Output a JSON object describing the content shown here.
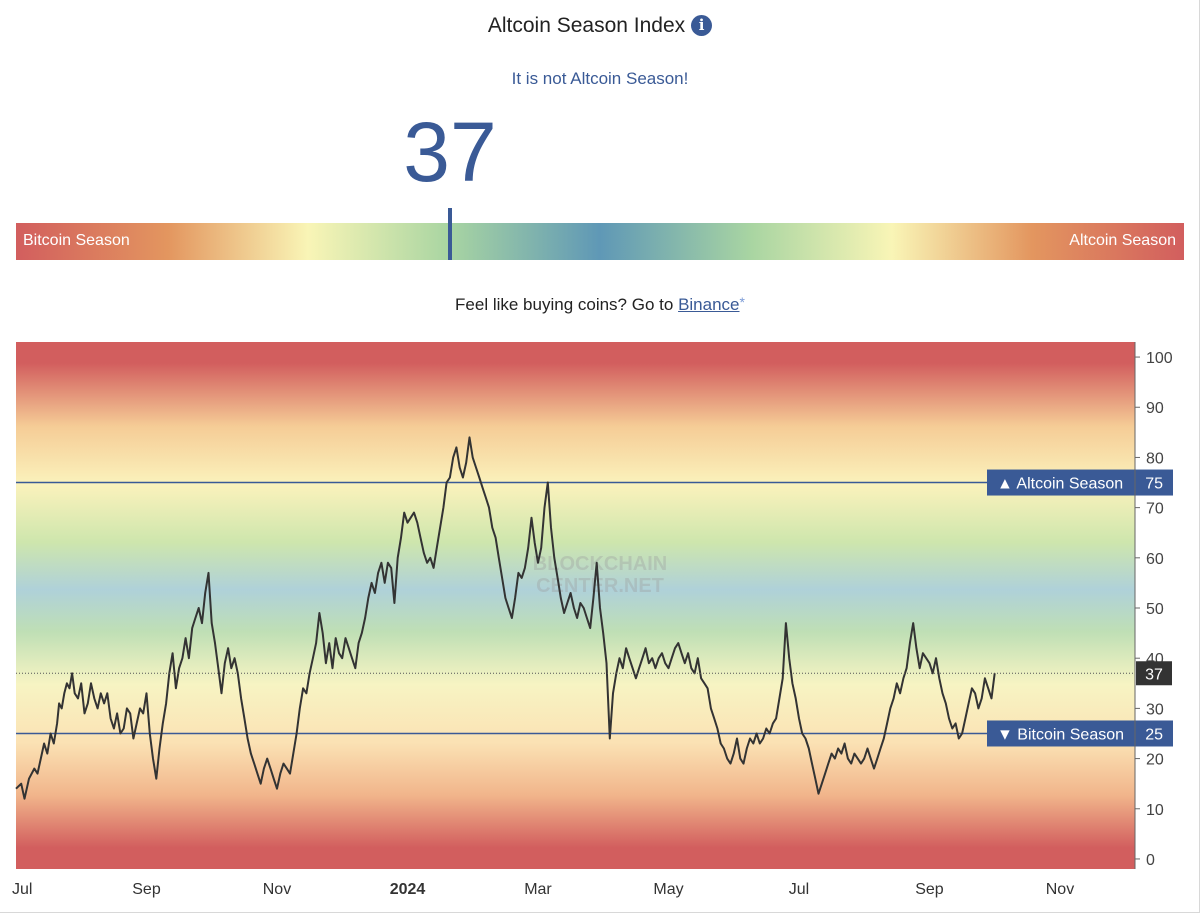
{
  "header": {
    "title": "Altcoin Season Index",
    "info_icon": "info-icon",
    "status_text": "It is not Altcoin Season!"
  },
  "gauge": {
    "value": "37",
    "min": 0,
    "max": 100,
    "left_label": "Bitcoin Season",
    "right_label": "Altcoin Season"
  },
  "promo": {
    "text": "Feel like buying coins? Go to",
    "link_label": "Binance",
    "link_suffix": "*"
  },
  "chart_data": {
    "type": "line",
    "watermark": "BLOCKCHAIN CENTER.NET",
    "ylim": [
      -2,
      103
    ],
    "yticks": [
      0,
      10,
      20,
      30,
      40,
      50,
      60,
      70,
      80,
      90,
      100
    ],
    "x_range": [
      0,
      17.15
    ],
    "x_tick_labels": [
      {
        "label": "Jul",
        "pos": 0
      },
      {
        "label": "Sep",
        "pos": 2
      },
      {
        "label": "Nov",
        "pos": 4
      },
      {
        "label": "2024",
        "pos": 6
      },
      {
        "label": "Mar",
        "pos": 8
      },
      {
        "label": "May",
        "pos": 10
      },
      {
        "label": "Jul",
        "pos": 12
      },
      {
        "label": "Sep",
        "pos": 14
      },
      {
        "label": "Nov",
        "pos": 16
      }
    ],
    "reference_lines": [
      {
        "name": "Altcoin Season",
        "value": 75,
        "label": "▲ Altcoin Season",
        "value_label": "75"
      },
      {
        "name": "Bitcoin Season",
        "value": 25,
        "label": "▼ Bitcoin Season",
        "value_label": "25"
      }
    ],
    "current": {
      "value": 37,
      "label": "37"
    },
    "series": [
      {
        "name": "Altcoin Season Index",
        "points": [
          [
            0.0,
            14
          ],
          [
            0.08,
            15
          ],
          [
            0.13,
            12
          ],
          [
            0.2,
            16
          ],
          [
            0.28,
            18
          ],
          [
            0.33,
            17
          ],
          [
            0.38,
            20
          ],
          [
            0.43,
            23
          ],
          [
            0.48,
            21
          ],
          [
            0.53,
            25
          ],
          [
            0.58,
            23
          ],
          [
            0.63,
            27
          ],
          [
            0.66,
            31
          ],
          [
            0.7,
            30
          ],
          [
            0.74,
            33
          ],
          [
            0.78,
            35
          ],
          [
            0.82,
            34
          ],
          [
            0.86,
            37
          ],
          [
            0.9,
            33
          ],
          [
            0.95,
            32
          ],
          [
            1.0,
            35
          ],
          [
            1.05,
            29
          ],
          [
            1.1,
            31
          ],
          [
            1.15,
            35
          ],
          [
            1.2,
            32
          ],
          [
            1.25,
            30
          ],
          [
            1.3,
            33
          ],
          [
            1.35,
            31
          ],
          [
            1.4,
            33
          ],
          [
            1.45,
            28
          ],
          [
            1.5,
            26
          ],
          [
            1.55,
            29
          ],
          [
            1.6,
            25
          ],
          [
            1.65,
            26
          ],
          [
            1.7,
            30
          ],
          [
            1.75,
            29
          ],
          [
            1.8,
            24
          ],
          [
            1.85,
            27
          ],
          [
            1.9,
            30
          ],
          [
            1.95,
            29
          ],
          [
            2.0,
            33
          ],
          [
            2.05,
            25
          ],
          [
            2.1,
            20
          ],
          [
            2.15,
            16
          ],
          [
            2.2,
            22
          ],
          [
            2.25,
            27
          ],
          [
            2.3,
            31
          ],
          [
            2.35,
            37
          ],
          [
            2.4,
            41
          ],
          [
            2.45,
            34
          ],
          [
            2.5,
            38
          ],
          [
            2.55,
            40
          ],
          [
            2.6,
            44
          ],
          [
            2.65,
            40
          ],
          [
            2.7,
            46
          ],
          [
            2.75,
            48
          ],
          [
            2.8,
            50
          ],
          [
            2.85,
            47
          ],
          [
            2.9,
            53
          ],
          [
            2.95,
            57
          ],
          [
            3.0,
            47
          ],
          [
            3.05,
            43
          ],
          [
            3.1,
            38
          ],
          [
            3.15,
            33
          ],
          [
            3.2,
            39
          ],
          [
            3.25,
            42
          ],
          [
            3.3,
            38
          ],
          [
            3.35,
            40
          ],
          [
            3.4,
            37
          ],
          [
            3.45,
            32
          ],
          [
            3.5,
            28
          ],
          [
            3.55,
            24
          ],
          [
            3.6,
            21
          ],
          [
            3.65,
            19
          ],
          [
            3.7,
            17
          ],
          [
            3.75,
            15
          ],
          [
            3.8,
            18
          ],
          [
            3.85,
            20
          ],
          [
            3.9,
            18
          ],
          [
            3.95,
            16
          ],
          [
            4.0,
            14
          ],
          [
            4.05,
            17
          ],
          [
            4.1,
            19
          ],
          [
            4.15,
            18
          ],
          [
            4.2,
            17
          ],
          [
            4.25,
            21
          ],
          [
            4.3,
            25
          ],
          [
            4.35,
            30
          ],
          [
            4.4,
            34
          ],
          [
            4.45,
            33
          ],
          [
            4.5,
            37
          ],
          [
            4.55,
            40
          ],
          [
            4.6,
            43
          ],
          [
            4.65,
            49
          ],
          [
            4.7,
            45
          ],
          [
            4.75,
            39
          ],
          [
            4.8,
            43
          ],
          [
            4.85,
            38
          ],
          [
            4.9,
            44
          ],
          [
            4.95,
            41
          ],
          [
            5.0,
            40
          ],
          [
            5.05,
            44
          ],
          [
            5.1,
            42
          ],
          [
            5.15,
            40
          ],
          [
            5.2,
            38
          ],
          [
            5.25,
            43
          ],
          [
            5.3,
            45
          ],
          [
            5.35,
            48
          ],
          [
            5.4,
            52
          ],
          [
            5.45,
            55
          ],
          [
            5.5,
            53
          ],
          [
            5.55,
            57
          ],
          [
            5.6,
            59
          ],
          [
            5.65,
            55
          ],
          [
            5.7,
            59
          ],
          [
            5.75,
            58
          ],
          [
            5.8,
            51
          ],
          [
            5.85,
            60
          ],
          [
            5.9,
            64
          ],
          [
            5.95,
            69
          ],
          [
            6.0,
            67
          ],
          [
            6.05,
            68
          ],
          [
            6.1,
            69
          ],
          [
            6.15,
            67
          ],
          [
            6.2,
            64
          ],
          [
            6.25,
            61
          ],
          [
            6.3,
            59
          ],
          [
            6.35,
            60
          ],
          [
            6.4,
            58
          ],
          [
            6.45,
            62
          ],
          [
            6.5,
            66
          ],
          [
            6.55,
            70
          ],
          [
            6.6,
            75
          ],
          [
            6.65,
            76
          ],
          [
            6.7,
            80
          ],
          [
            6.75,
            82
          ],
          [
            6.8,
            78
          ],
          [
            6.85,
            76
          ],
          [
            6.9,
            79
          ],
          [
            6.95,
            84
          ],
          [
            7.0,
            80
          ],
          [
            7.05,
            78
          ],
          [
            7.1,
            76
          ],
          [
            7.15,
            74
          ],
          [
            7.2,
            72
          ],
          [
            7.25,
            70
          ],
          [
            7.3,
            66
          ],
          [
            7.35,
            64
          ],
          [
            7.4,
            60
          ],
          [
            7.45,
            56
          ],
          [
            7.5,
            52
          ],
          [
            7.55,
            50
          ],
          [
            7.6,
            48
          ],
          [
            7.65,
            52
          ],
          [
            7.7,
            57
          ],
          [
            7.75,
            56
          ],
          [
            7.8,
            58
          ],
          [
            7.85,
            62
          ],
          [
            7.9,
            68
          ],
          [
            7.95,
            63
          ],
          [
            8.0,
            59
          ],
          [
            8.05,
            62
          ],
          [
            8.1,
            70
          ],
          [
            8.15,
            75
          ],
          [
            8.2,
            66
          ],
          [
            8.25,
            60
          ],
          [
            8.3,
            56
          ],
          [
            8.35,
            52
          ],
          [
            8.4,
            49
          ],
          [
            8.45,
            51
          ],
          [
            8.5,
            53
          ],
          [
            8.55,
            50
          ],
          [
            8.6,
            48
          ],
          [
            8.65,
            51
          ],
          [
            8.7,
            50
          ],
          [
            8.75,
            48
          ],
          [
            8.8,
            46
          ],
          [
            8.85,
            52
          ],
          [
            8.9,
            59
          ],
          [
            8.95,
            50
          ],
          [
            9.0,
            45
          ],
          [
            9.05,
            39
          ],
          [
            9.1,
            24
          ],
          [
            9.15,
            33
          ],
          [
            9.2,
            37
          ],
          [
            9.25,
            40
          ],
          [
            9.3,
            38
          ],
          [
            9.35,
            42
          ],
          [
            9.4,
            40
          ],
          [
            9.45,
            38
          ],
          [
            9.5,
            36
          ],
          [
            9.55,
            38
          ],
          [
            9.6,
            40
          ],
          [
            9.65,
            42
          ],
          [
            9.7,
            39
          ],
          [
            9.75,
            40
          ],
          [
            9.8,
            38
          ],
          [
            9.85,
            40
          ],
          [
            9.9,
            41
          ],
          [
            9.95,
            39
          ],
          [
            10.0,
            38
          ],
          [
            10.05,
            40
          ],
          [
            10.1,
            42
          ],
          [
            10.15,
            43
          ],
          [
            10.2,
            41
          ],
          [
            10.25,
            39
          ],
          [
            10.3,
            41
          ],
          [
            10.35,
            38
          ],
          [
            10.4,
            37
          ],
          [
            10.45,
            40
          ],
          [
            10.5,
            36
          ],
          [
            10.55,
            35
          ],
          [
            10.6,
            34
          ],
          [
            10.65,
            30
          ],
          [
            10.7,
            28
          ],
          [
            10.75,
            26
          ],
          [
            10.8,
            23
          ],
          [
            10.85,
            22
          ],
          [
            10.9,
            20
          ],
          [
            10.95,
            19
          ],
          [
            11.0,
            21
          ],
          [
            11.05,
            24
          ],
          [
            11.1,
            20
          ],
          [
            11.15,
            19
          ],
          [
            11.2,
            22
          ],
          [
            11.25,
            24
          ],
          [
            11.3,
            23
          ],
          [
            11.35,
            25
          ],
          [
            11.4,
            23
          ],
          [
            11.45,
            24
          ],
          [
            11.5,
            26
          ],
          [
            11.55,
            25
          ],
          [
            11.6,
            27
          ],
          [
            11.65,
            28
          ],
          [
            11.7,
            32
          ],
          [
            11.75,
            36
          ],
          [
            11.8,
            47
          ],
          [
            11.85,
            40
          ],
          [
            11.9,
            35
          ],
          [
            11.95,
            32
          ],
          [
            12.0,
            28
          ],
          [
            12.05,
            25
          ],
          [
            12.1,
            24
          ],
          [
            12.15,
            22
          ],
          [
            12.2,
            19
          ],
          [
            12.25,
            16
          ],
          [
            12.3,
            13
          ],
          [
            12.35,
            15
          ],
          [
            12.4,
            17
          ],
          [
            12.45,
            19
          ],
          [
            12.5,
            21
          ],
          [
            12.55,
            20
          ],
          [
            12.6,
            22
          ],
          [
            12.65,
            21
          ],
          [
            12.7,
            23
          ],
          [
            12.75,
            20
          ],
          [
            12.8,
            19
          ],
          [
            12.85,
            21
          ],
          [
            12.9,
            20
          ],
          [
            12.95,
            19
          ],
          [
            13.0,
            20
          ],
          [
            13.05,
            22
          ],
          [
            13.1,
            20
          ],
          [
            13.15,
            18
          ],
          [
            13.2,
            20
          ],
          [
            13.25,
            22
          ],
          [
            13.3,
            24
          ],
          [
            13.35,
            27
          ],
          [
            13.4,
            30
          ],
          [
            13.45,
            32
          ],
          [
            13.5,
            35
          ],
          [
            13.55,
            33
          ],
          [
            13.6,
            36
          ],
          [
            13.65,
            38
          ],
          [
            13.7,
            43
          ],
          [
            13.75,
            47
          ],
          [
            13.8,
            42
          ],
          [
            13.85,
            38
          ],
          [
            13.9,
            41
          ],
          [
            13.95,
            40
          ],
          [
            14.0,
            39
          ],
          [
            14.05,
            37
          ],
          [
            14.1,
            40
          ],
          [
            14.15,
            36
          ],
          [
            14.2,
            33
          ],
          [
            14.25,
            31
          ],
          [
            14.3,
            28
          ],
          [
            14.35,
            26
          ],
          [
            14.4,
            27
          ],
          [
            14.45,
            24
          ],
          [
            14.5,
            25
          ],
          [
            14.55,
            28
          ],
          [
            14.6,
            31
          ],
          [
            14.65,
            34
          ],
          [
            14.7,
            33
          ],
          [
            14.75,
            30
          ],
          [
            14.8,
            32
          ],
          [
            14.85,
            36
          ],
          [
            14.9,
            34
          ],
          [
            14.95,
            32
          ],
          [
            15.0,
            37
          ]
        ]
      }
    ]
  }
}
